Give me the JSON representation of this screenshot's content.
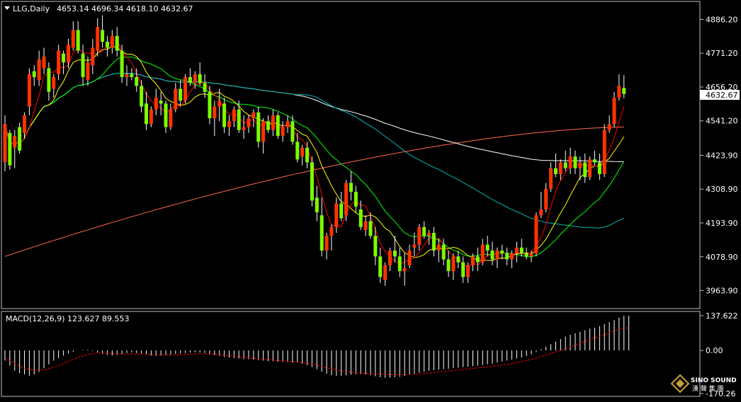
{
  "header": {
    "symbol": "LLG,Daily",
    "ohlc": "4653.14 4696.34 4618.10 4632.67",
    "macd_label": "MACD(12,26,9) 123.627 89.553"
  },
  "watermark": {
    "brand": "SINO SOUND",
    "sub": "漢 聲 集 團"
  },
  "colors": {
    "background": "#000000",
    "up_candle": "#ff3300",
    "down_candle": "#7cfc00",
    "wick": "#ffffff",
    "ma5": "#ff0000",
    "ma10": "#ffff00",
    "ma20": "#00ff00",
    "ma60": "#00b4b4",
    "ma120": "#ffffff",
    "ma240": "#ff6a4a",
    "macd_hist": "#ffffff",
    "macd_signal": "#ff0000",
    "price_tag_bg": "#ffffff",
    "price_tag_fg": "#000000",
    "frame": "#c0c0c0"
  },
  "chart_data": [
    {
      "type": "candlestick",
      "ylim": [
        3905,
        4945
      ],
      "yticks": [
        "4886.20",
        "4771.20",
        "4656.20",
        "4541.20",
        "4423.90",
        "4308.90",
        "4193.90",
        "4078.90",
        "3963.90"
      ],
      "last_price": "4632.67",
      "ohlc": [
        [
          4400,
          4560,
          4370,
          4530
        ],
        [
          4500,
          4510,
          4375,
          4390
        ],
        [
          4450,
          4510,
          4380,
          4490
        ],
        [
          4520,
          4535,
          4430,
          4440
        ],
        [
          4500,
          4570,
          4480,
          4560
        ],
        [
          4590,
          4720,
          4560,
          4700
        ],
        [
          4710,
          4730,
          4660,
          4690
        ],
        [
          4680,
          4780,
          4660,
          4750
        ],
        [
          4720,
          4790,
          4700,
          4760
        ],
        [
          4720,
          4740,
          4610,
          4640
        ],
        [
          4650,
          4700,
          4620,
          4690
        ],
        [
          4700,
          4800,
          4680,
          4780
        ],
        [
          4770,
          4780,
          4700,
          4740
        ],
        [
          4740,
          4820,
          4720,
          4800
        ],
        [
          4790,
          4880,
          4780,
          4850
        ],
        [
          4850,
          4880,
          4770,
          4780
        ],
        [
          4770,
          4800,
          4660,
          4690
        ],
        [
          4680,
          4760,
          4660,
          4740
        ],
        [
          4730,
          4820,
          4700,
          4790
        ],
        [
          4780,
          4890,
          4760,
          4860
        ],
        [
          4850,
          4900,
          4790,
          4810
        ],
        [
          4810,
          4830,
          4760,
          4790
        ],
        [
          4790,
          4850,
          4770,
          4830
        ],
        [
          4830,
          4860,
          4760,
          4780
        ],
        [
          4780,
          4800,
          4670,
          4690
        ],
        [
          4690,
          4730,
          4660,
          4700
        ],
        [
          4700,
          4720,
          4680,
          4690
        ],
        [
          4690,
          4720,
          4640,
          4660
        ],
        [
          4660,
          4680,
          4570,
          4590
        ],
        [
          4600,
          4640,
          4510,
          4530
        ],
        [
          4530,
          4590,
          4520,
          4580
        ],
        [
          4580,
          4650,
          4560,
          4620
        ],
        [
          4610,
          4640,
          4560,
          4600
        ],
        [
          4600,
          4610,
          4500,
          4520
        ],
        [
          4520,
          4600,
          4510,
          4580
        ],
        [
          4580,
          4670,
          4570,
          4650
        ],
        [
          4650,
          4680,
          4590,
          4610
        ],
        [
          4610,
          4700,
          4600,
          4690
        ],
        [
          4690,
          4720,
          4660,
          4670
        ],
        [
          4670,
          4710,
          4650,
          4700
        ],
        [
          4700,
          4740,
          4660,
          4670
        ],
        [
          4670,
          4700,
          4620,
          4640
        ],
        [
          4640,
          4660,
          4530,
          4550
        ],
        [
          4550,
          4610,
          4490,
          4590
        ],
        [
          4590,
          4650,
          4540,
          4610
        ],
        [
          4600,
          4620,
          4500,
          4520
        ],
        [
          4520,
          4560,
          4490,
          4540
        ],
        [
          4540,
          4590,
          4520,
          4580
        ],
        [
          4580,
          4610,
          4500,
          4510
        ],
        [
          4510,
          4560,
          4480,
          4520
        ],
        [
          4520,
          4560,
          4500,
          4550
        ],
        [
          4550,
          4580,
          4520,
          4570
        ],
        [
          4570,
          4590,
          4450,
          4470
        ],
        [
          4470,
          4550,
          4430,
          4540
        ],
        [
          4540,
          4560,
          4500,
          4510
        ],
        [
          4510,
          4580,
          4490,
          4560
        ],
        [
          4560,
          4570,
          4480,
          4490
        ],
        [
          4490,
          4540,
          4470,
          4520
        ],
        [
          4520,
          4560,
          4500,
          4540
        ],
        [
          4540,
          4560,
          4460,
          4470
        ],
        [
          4470,
          4500,
          4400,
          4410
        ],
        [
          4420,
          4460,
          4390,
          4450
        ],
        [
          4450,
          4470,
          4380,
          4400
        ],
        [
          4400,
          4420,
          4250,
          4270
        ],
        [
          4280,
          4320,
          4200,
          4230
        ],
        [
          4220,
          4280,
          4080,
          4100
        ],
        [
          4100,
          4160,
          4070,
          4150
        ],
        [
          4150,
          4190,
          4100,
          4180
        ],
        [
          4180,
          4280,
          4160,
          4260
        ],
        [
          4260,
          4300,
          4200,
          4210
        ],
        [
          4220,
          4340,
          4200,
          4330
        ],
        [
          4330,
          4370,
          4270,
          4300
        ],
        [
          4300,
          4320,
          4230,
          4250
        ],
        [
          4240,
          4270,
          4170,
          4180
        ],
        [
          4170,
          4220,
          4150,
          4200
        ],
        [
          4200,
          4230,
          4140,
          4150
        ],
        [
          4150,
          4180,
          4050,
          4080
        ],
        [
          4080,
          4110,
          3990,
          4010
        ],
        [
          4000,
          4060,
          3980,
          4050
        ],
        [
          4050,
          4110,
          4030,
          4100
        ],
        [
          4100,
          4150,
          4060,
          4080
        ],
        [
          4080,
          4110,
          4010,
          4030
        ],
        [
          4030,
          4090,
          3980,
          4040
        ],
        [
          4050,
          4120,
          4040,
          4100
        ],
        [
          4110,
          4160,
          4080,
          4120
        ],
        [
          4120,
          4190,
          4100,
          4180
        ],
        [
          4180,
          4200,
          4140,
          4150
        ],
        [
          4150,
          4170,
          4120,
          4160
        ],
        [
          4160,
          4180,
          4080,
          4100
        ],
        [
          4100,
          4140,
          4060,
          4120
        ],
        [
          4120,
          4140,
          4050,
          4070
        ],
        [
          4070,
          4100,
          4010,
          4030
        ],
        [
          4030,
          4090,
          4000,
          4080
        ],
        [
          4080,
          4100,
          4040,
          4060
        ],
        [
          4060,
          4080,
          3990,
          4010
        ],
        [
          4010,
          4060,
          3990,
          4050
        ],
        [
          4050,
          4090,
          4030,
          4080
        ],
        [
          4080,
          4110,
          4030,
          4060
        ],
        [
          4060,
          4140,
          4050,
          4120
        ],
        [
          4120,
          4150,
          4080,
          4100
        ],
        [
          4100,
          4130,
          4050,
          4070
        ],
        [
          4070,
          4110,
          4040,
          4100
        ],
        [
          4100,
          4120,
          4070,
          4090
        ],
        [
          4090,
          4110,
          4050,
          4070
        ],
        [
          4070,
          4100,
          4040,
          4090
        ],
        [
          4090,
          4130,
          4060,
          4110
        ],
        [
          4110,
          4140,
          4080,
          4090
        ],
        [
          4090,
          4110,
          4070,
          4080
        ],
        [
          4080,
          4100,
          4060,
          4090
        ],
        [
          4090,
          4230,
          4080,
          4220
        ],
        [
          4220,
          4300,
          4210,
          4240
        ],
        [
          4240,
          4330,
          4230,
          4310
        ],
        [
          4310,
          4400,
          4300,
          4380
        ],
        [
          4380,
          4430,
          4350,
          4360
        ],
        [
          4360,
          4410,
          4340,
          4400
        ],
        [
          4400,
          4440,
          4370,
          4380
        ],
        [
          4380,
          4450,
          4360,
          4420
        ],
        [
          4420,
          4440,
          4360,
          4380
        ],
        [
          4380,
          4420,
          4340,
          4400
        ],
        [
          4400,
          4430,
          4330,
          4350
        ],
        [
          4350,
          4420,
          4340,
          4410
        ],
        [
          4410,
          4440,
          4390,
          4400
        ],
        [
          4400,
          4430,
          4340,
          4360
        ],
        [
          4360,
          4530,
          4350,
          4510
        ],
        [
          4510,
          4560,
          4500,
          4530
        ],
        [
          4530,
          4640,
          4520,
          4620
        ],
        [
          4620,
          4700,
          4610,
          4660
        ],
        [
          4653.14,
          4696.34,
          4618.1,
          4632.67
        ]
      ],
      "ma240": {
        "start": 4080,
        "end": 4520
      }
    },
    {
      "type": "bar",
      "label": "MACD(12,26,9)",
      "values_text": "123.627 89.553",
      "ylim": [
        -170.26,
        137.622
      ],
      "yticks": [
        "137.622",
        "0.00",
        "-170.26"
      ],
      "histogram": [
        -40,
        -60,
        -80,
        -90,
        -95,
        -100,
        -95,
        -85,
        -70,
        -55,
        -40,
        -30,
        -20,
        -12,
        -5,
        0,
        2,
        3,
        -2,
        -8,
        -14,
        -18,
        -20,
        -18,
        -15,
        -10,
        -8,
        -10,
        -12,
        -16,
        -20,
        -22,
        -20,
        -18,
        -16,
        -14,
        -12,
        -10,
        -8,
        -7,
        -8,
        -10,
        -14,
        -18,
        -22,
        -26,
        -28,
        -30,
        -32,
        -34,
        -35,
        -36,
        -38,
        -40,
        -42,
        -43,
        -44,
        -45,
        -46,
        -47,
        -48,
        -52,
        -58,
        -66,
        -74,
        -84,
        -92,
        -98,
        -100,
        -100,
        -98,
        -96,
        -94,
        -94,
        -95,
        -98,
        -102,
        -106,
        -108,
        -108,
        -106,
        -104,
        -100,
        -96,
        -92,
        -88,
        -84,
        -80,
        -78,
        -76,
        -74,
        -72,
        -70,
        -68,
        -66,
        -64,
        -62,
        -60,
        -58,
        -55,
        -52,
        -48,
        -44,
        -40,
        -36,
        -32,
        -28,
        -22,
        -16,
        -6,
        5,
        15,
        25,
        35,
        45,
        55,
        62,
        68,
        74,
        80,
        86,
        90,
        96,
        104,
        112,
        120,
        130,
        137,
        137
      ],
      "signal": [
        -30,
        -40,
        -52,
        -62,
        -70,
        -76,
        -78,
        -78,
        -76,
        -72,
        -66,
        -60,
        -52,
        -44,
        -36,
        -28,
        -22,
        -16,
        -12,
        -10,
        -10,
        -11,
        -12,
        -13,
        -14,
        -14,
        -14,
        -14,
        -14,
        -15,
        -16,
        -17,
        -18,
        -18,
        -18,
        -18,
        -17,
        -16,
        -15,
        -14,
        -13,
        -13,
        -14,
        -15,
        -17,
        -19,
        -21,
        -23,
        -25,
        -27,
        -29,
        -31,
        -33,
        -35,
        -36,
        -38,
        -40,
        -42,
        -43,
        -44,
        -46,
        -48,
        -51,
        -54,
        -58,
        -63,
        -68,
        -73,
        -77,
        -81,
        -84,
        -86,
        -88,
        -89,
        -90,
        -91,
        -92,
        -93,
        -94,
        -95,
        -96,
        -96,
        -96,
        -95,
        -94,
        -93,
        -91,
        -89,
        -87,
        -85,
        -83,
        -81,
        -79,
        -77,
        -75,
        -73,
        -71,
        -69,
        -67,
        -65,
        -63,
        -61,
        -58,
        -55,
        -52,
        -48,
        -44,
        -40,
        -35,
        -30,
        -24,
        -18,
        -12,
        -6,
        0,
        7,
        14,
        21,
        28,
        35,
        42,
        49,
        56,
        63,
        70,
        77,
        84,
        89,
        89
      ]
    }
  ]
}
